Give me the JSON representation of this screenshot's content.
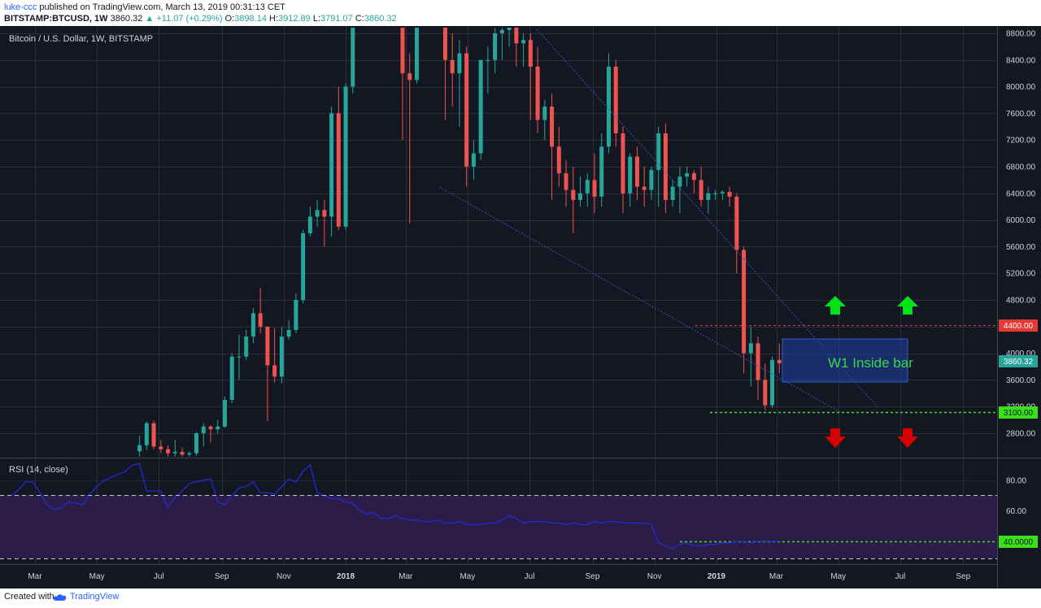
{
  "header": {
    "author": "luke-ccc",
    "published": "published on TradingView.com, March 13, 2019 00:31:13 CET",
    "symbol": "BITSTAMP:BTCUSD, 1W",
    "last": "3860.32",
    "change": "▲ +11.07 (+0.29%)",
    "o_label": "O:",
    "o_value": "3898.14",
    "h_label": "H:",
    "h_value": "3912.89",
    "l_label": "L:",
    "l_value": "3791.07",
    "c_label": "C:",
    "c_value": "3860.32"
  },
  "footer": {
    "created_with": "Created with",
    "brand": "TradingView"
  },
  "chart_data": [
    {
      "type": "candlestick",
      "title": "Bitcoin / U.S. Dollar, 1W, BITSTAMP",
      "y_ticks": [
        2800,
        3200,
        3600,
        4000,
        4400,
        4800,
        5200,
        5600,
        6000,
        6400,
        6800,
        7200,
        7600,
        8000,
        8400,
        8800
      ],
      "ylim": [
        2450,
        8900
      ],
      "x_tick_labels": [
        "Mar",
        "May",
        "Jul",
        "Sep",
        "Nov",
        "2018",
        "Mar",
        "May",
        "Jul",
        "Sep",
        "Nov",
        "2019",
        "Mar",
        "May",
        "Jul",
        "Sep"
      ],
      "x_tick_dates": [
        "2017-03-01",
        "2017-05-01",
        "2017-07-01",
        "2017-09-01",
        "2017-11-01",
        "2018-01-01",
        "2018-03-01",
        "2018-05-01",
        "2018-07-01",
        "2018-09-01",
        "2018-11-01",
        "2019-01-01",
        "2019-03-01",
        "2019-05-01",
        "2019-07-01",
        "2019-09-01"
      ],
      "candle_colors": {
        "up": "#26a69a",
        "down": "#ef5350"
      },
      "candles": [
        {
          "date": "2017-06-12",
          "o": 2530,
          "h": 2760,
          "l": 2450,
          "c": 2620
        },
        {
          "date": "2017-06-19",
          "o": 2620,
          "h": 2980,
          "l": 2550,
          "c": 2950
        },
        {
          "date": "2017-06-26",
          "o": 2950,
          "h": 2990,
          "l": 2560,
          "c": 2600
        },
        {
          "date": "2017-07-03",
          "o": 2600,
          "h": 2700,
          "l": 2500,
          "c": 2560
        },
        {
          "date": "2017-07-10",
          "o": 2560,
          "h": 2620,
          "l": 2450,
          "c": 2500
        },
        {
          "date": "2017-07-17",
          "o": 2500,
          "h": 2700,
          "l": 2450,
          "c": 2520
        },
        {
          "date": "2017-07-24",
          "o": 2520,
          "h": 2580,
          "l": 2450,
          "c": 2480
        },
        {
          "date": "2017-07-31",
          "o": 2480,
          "h": 2530,
          "l": 2450,
          "c": 2500
        },
        {
          "date": "2017-08-07",
          "o": 2500,
          "h": 2820,
          "l": 2460,
          "c": 2800
        },
        {
          "date": "2017-08-14",
          "o": 2800,
          "h": 2950,
          "l": 2600,
          "c": 2900
        },
        {
          "date": "2017-08-21",
          "o": 2900,
          "h": 2920,
          "l": 2660,
          "c": 2860
        },
        {
          "date": "2017-08-28",
          "o": 2860,
          "h": 3000,
          "l": 2800,
          "c": 2900
        },
        {
          "date": "2017-09-04",
          "o": 2900,
          "h": 3350,
          "l": 2880,
          "c": 3300
        },
        {
          "date": "2017-09-11",
          "o": 3300,
          "h": 4000,
          "l": 3250,
          "c": 3950
        },
        {
          "date": "2017-09-18",
          "o": 3950,
          "h": 4280,
          "l": 3600,
          "c": 3950
        },
        {
          "date": "2017-09-25",
          "o": 3950,
          "h": 4350,
          "l": 3900,
          "c": 4250
        },
        {
          "date": "2017-10-02",
          "o": 4250,
          "h": 4680,
          "l": 4150,
          "c": 4600
        },
        {
          "date": "2017-10-09",
          "o": 4600,
          "h": 4980,
          "l": 4300,
          "c": 4400
        },
        {
          "date": "2017-10-16",
          "o": 4400,
          "h": 4400,
          "l": 2980,
          "c": 3820
        },
        {
          "date": "2017-10-23",
          "o": 3820,
          "h": 4380,
          "l": 3560,
          "c": 3650
        },
        {
          "date": "2017-10-30",
          "o": 3650,
          "h": 4400,
          "l": 3550,
          "c": 4250
        },
        {
          "date": "2017-11-06",
          "o": 4250,
          "h": 4500,
          "l": 4200,
          "c": 4350
        },
        {
          "date": "2017-11-13",
          "o": 4350,
          "h": 4900,
          "l": 4300,
          "c": 4800
        },
        {
          "date": "2017-11-20",
          "o": 4800,
          "h": 5850,
          "l": 4750,
          "c": 5800
        },
        {
          "date": "2017-11-27",
          "o": 5800,
          "h": 6200,
          "l": 5750,
          "c": 6050
        },
        {
          "date": "2017-12-04",
          "o": 6050,
          "h": 6300,
          "l": 5900,
          "c": 6150
        },
        {
          "date": "2017-12-11",
          "o": 6150,
          "h": 6300,
          "l": 5600,
          "c": 6050
        },
        {
          "date": "2017-12-18",
          "o": 6050,
          "h": 7700,
          "l": 5750,
          "c": 7600
        },
        {
          "date": "2017-12-25",
          "o": 7600,
          "h": 8000,
          "l": 5850,
          "c": 5900
        },
        {
          "date": "2018-01-01",
          "o": 5900,
          "h": 8050,
          "l": 5850,
          "c": 8000
        },
        {
          "date": "2018-01-08",
          "o": 8000,
          "h": 8900,
          "l": 7900,
          "c": 8900
        },
        {
          "date": "2018-02-26",
          "o": 8900,
          "h": 8900,
          "l": 7200,
          "c": 8200
        },
        {
          "date": "2018-03-05",
          "o": 8200,
          "h": 8500,
          "l": 5950,
          "c": 8100
        },
        {
          "date": "2018-03-12",
          "o": 8100,
          "h": 8900,
          "l": 8050,
          "c": 8900
        },
        {
          "date": "2018-04-09",
          "o": 8900,
          "h": 8900,
          "l": 7500,
          "c": 8400
        },
        {
          "date": "2018-04-16",
          "o": 8400,
          "h": 8800,
          "l": 7700,
          "c": 8200
        },
        {
          "date": "2018-04-23",
          "o": 8200,
          "h": 8700,
          "l": 7400,
          "c": 8500
        },
        {
          "date": "2018-04-30",
          "o": 8500,
          "h": 8600,
          "l": 6500,
          "c": 6800
        },
        {
          "date": "2018-05-07",
          "o": 6800,
          "h": 7200,
          "l": 6600,
          "c": 7000
        },
        {
          "date": "2018-05-14",
          "o": 7000,
          "h": 8400,
          "l": 6900,
          "c": 8400
        },
        {
          "date": "2018-05-21",
          "o": 8400,
          "h": 8600,
          "l": 7900,
          "c": 8400
        },
        {
          "date": "2018-05-28",
          "o": 8400,
          "h": 8900,
          "l": 8200,
          "c": 8800
        },
        {
          "date": "2018-06-04",
          "o": 8800,
          "h": 8900,
          "l": 8400,
          "c": 8850
        },
        {
          "date": "2018-06-11",
          "o": 8850,
          "h": 8900,
          "l": 8600,
          "c": 8900
        },
        {
          "date": "2018-06-18",
          "o": 8900,
          "h": 8900,
          "l": 8300,
          "c": 8650
        },
        {
          "date": "2018-06-25",
          "o": 8650,
          "h": 8800,
          "l": 8300,
          "c": 8700
        },
        {
          "date": "2018-07-02",
          "o": 8700,
          "h": 8800,
          "l": 7500,
          "c": 8300
        },
        {
          "date": "2018-07-09",
          "o": 8300,
          "h": 8600,
          "l": 7300,
          "c": 7500
        },
        {
          "date": "2018-07-16",
          "o": 7500,
          "h": 7800,
          "l": 7200,
          "c": 7700
        },
        {
          "date": "2018-07-23",
          "o": 7700,
          "h": 7900,
          "l": 6300,
          "c": 7100
        },
        {
          "date": "2018-07-30",
          "o": 7100,
          "h": 7400,
          "l": 6500,
          "c": 6700
        },
        {
          "date": "2018-08-06",
          "o": 6700,
          "h": 6900,
          "l": 6200,
          "c": 6450
        },
        {
          "date": "2018-08-13",
          "o": 6450,
          "h": 6800,
          "l": 5800,
          "c": 6300
        },
        {
          "date": "2018-08-20",
          "o": 6300,
          "h": 6650,
          "l": 6200,
          "c": 6400
        },
        {
          "date": "2018-08-27",
          "o": 6400,
          "h": 6700,
          "l": 6200,
          "c": 6600
        },
        {
          "date": "2018-09-03",
          "o": 6600,
          "h": 7000,
          "l": 6100,
          "c": 6350
        },
        {
          "date": "2018-09-10",
          "o": 6350,
          "h": 7300,
          "l": 6200,
          "c": 7100
        },
        {
          "date": "2018-09-17",
          "o": 7100,
          "h": 8500,
          "l": 7000,
          "c": 8300
        },
        {
          "date": "2018-09-24",
          "o": 8300,
          "h": 8400,
          "l": 7100,
          "c": 7300
        },
        {
          "date": "2018-10-01",
          "o": 7300,
          "h": 7400,
          "l": 6100,
          "c": 6400
        },
        {
          "date": "2018-10-08",
          "o": 6400,
          "h": 7000,
          "l": 6200,
          "c": 6950
        },
        {
          "date": "2018-10-15",
          "o": 6950,
          "h": 7100,
          "l": 6300,
          "c": 6500
        },
        {
          "date": "2018-10-22",
          "o": 6500,
          "h": 6800,
          "l": 6200,
          "c": 6450
        },
        {
          "date": "2018-10-29",
          "o": 6450,
          "h": 6800,
          "l": 6300,
          "c": 6750
        },
        {
          "date": "2018-11-05",
          "o": 6750,
          "h": 7400,
          "l": 6200,
          "c": 7300
        },
        {
          "date": "2018-11-12",
          "o": 7300,
          "h": 7450,
          "l": 6100,
          "c": 6300
        },
        {
          "date": "2018-11-19",
          "o": 6300,
          "h": 6600,
          "l": 6200,
          "c": 6500
        },
        {
          "date": "2018-11-26",
          "o": 6500,
          "h": 6800,
          "l": 6100,
          "c": 6650
        },
        {
          "date": "2018-12-03",
          "o": 6650,
          "h": 6800,
          "l": 6500,
          "c": 6700
        },
        {
          "date": "2018-12-10",
          "o": 6700,
          "h": 6750,
          "l": 6400,
          "c": 6600
        },
        {
          "date": "2018-12-17",
          "o": 6600,
          "h": 6800,
          "l": 6200,
          "c": 6300
        },
        {
          "date": "2018-12-24",
          "o": 6300,
          "h": 6500,
          "l": 6100,
          "c": 6400
        },
        {
          "date": "2018-12-31",
          "o": 6400,
          "h": 6450,
          "l": 6300,
          "c": 6400
        },
        {
          "date": "2019-01-07",
          "o": 6400,
          "h": 6450,
          "l": 6300,
          "c": 6420
        },
        {
          "date": "2019-01-14",
          "o": 6420,
          "h": 6500,
          "l": 6200,
          "c": 6350
        },
        {
          "date": "2019-01-21",
          "o": 6350,
          "h": 6400,
          "l": 5200,
          "c": 5550
        },
        {
          "date": "2019-01-28",
          "o": 5550,
          "h": 5600,
          "l": 3700,
          "c": 4000
        },
        {
          "date": "2019-02-04",
          "o": 4000,
          "h": 4400,
          "l": 3500,
          "c": 4150
        },
        {
          "date": "2019-02-11",
          "o": 4150,
          "h": 4250,
          "l": 3300,
          "c": 3600
        },
        {
          "date": "2019-02-18",
          "o": 3600,
          "h": 3850,
          "l": 3150,
          "c": 3220
        },
        {
          "date": "2019-02-25",
          "o": 3220,
          "h": 3950,
          "l": 3180,
          "c": 3900
        },
        {
          "date": "2019-03-04",
          "o": 3900,
          "h": 4150,
          "l": 3700,
          "c": 3850
        }
      ]
    },
    {
      "type": "line",
      "title": "RSI (14, close)",
      "y_ticks": [
        40,
        60,
        80
      ],
      "ylim": [
        29,
        92
      ],
      "line_color": "#2329d9",
      "band": [
        30,
        70
      ],
      "band_color": "#4a2a78",
      "series": [
        {
          "x": [
            "2017-02-06",
            "2017-02-13",
            "2017-02-20",
            "2017-02-27",
            "2017-03-06",
            "2017-03-13",
            "2017-03-20",
            "2017-03-27",
            "2017-04-03",
            "2017-04-10",
            "2017-04-17",
            "2017-04-24",
            "2017-05-01",
            "2017-05-08",
            "2017-05-15",
            "2017-05-22",
            "2017-05-29",
            "2017-06-05",
            "2017-06-12",
            "2017-06-19",
            "2017-06-26",
            "2017-07-03",
            "2017-07-10",
            "2017-07-17",
            "2017-07-24",
            "2017-07-31",
            "2017-08-07",
            "2017-08-14",
            "2017-08-21",
            "2017-08-28",
            "2017-09-04",
            "2017-09-11",
            "2017-09-18",
            "2017-09-25",
            "2017-10-02",
            "2017-10-09",
            "2017-10-16",
            "2017-10-23",
            "2017-10-30",
            "2017-11-06",
            "2017-11-13",
            "2017-11-20",
            "2017-11-27",
            "2017-12-04",
            "2017-12-11",
            "2017-12-18",
            "2017-12-25",
            "2018-01-01",
            "2018-01-08",
            "2018-01-15",
            "2018-01-22",
            "2018-01-29",
            "2018-02-05",
            "2018-02-12",
            "2018-02-19",
            "2018-02-26",
            "2018-03-05",
            "2018-03-12",
            "2018-03-19",
            "2018-03-26",
            "2018-04-02",
            "2018-04-09",
            "2018-04-16",
            "2018-04-23",
            "2018-04-30",
            "2018-05-07",
            "2018-05-14",
            "2018-05-21",
            "2018-05-28",
            "2018-06-04",
            "2018-06-11",
            "2018-06-18",
            "2018-06-25",
            "2018-07-02",
            "2018-07-09",
            "2018-07-16",
            "2018-07-23",
            "2018-07-30",
            "2018-08-06",
            "2018-08-13",
            "2018-08-20",
            "2018-08-27",
            "2018-09-03",
            "2018-09-10",
            "2018-09-17",
            "2018-09-24",
            "2018-10-01",
            "2018-10-08",
            "2018-10-15",
            "2018-10-22",
            "2018-10-29",
            "2018-11-05",
            "2018-11-12",
            "2018-11-19",
            "2018-11-26",
            "2018-12-03",
            "2018-12-10",
            "2018-12-17",
            "2018-12-24",
            "2018-12-31",
            "2019-01-07",
            "2019-01-14",
            "2019-01-21",
            "2019-01-28",
            "2019-02-04",
            "2019-02-11",
            "2019-02-18",
            "2019-02-25",
            "2019-03-04"
          ],
          "values": [
            70,
            74,
            79,
            79,
            72,
            64,
            61,
            62,
            66,
            65,
            64,
            71,
            76,
            80,
            82,
            84,
            86,
            90,
            91,
            73,
            73,
            73,
            62,
            69,
            73,
            78,
            79,
            80,
            81,
            66,
            64,
            70,
            75,
            76,
            79,
            72,
            72,
            71,
            76,
            81,
            79,
            86,
            90,
            72,
            70,
            68,
            68,
            66,
            65,
            60,
            58,
            59,
            55,
            55,
            57,
            55,
            54,
            54,
            53,
            53,
            54,
            52,
            52,
            53,
            51,
            51,
            51,
            52,
            52,
            54,
            57,
            55,
            52,
            53,
            53,
            53,
            52,
            52,
            51,
            52,
            51,
            51,
            53,
            52,
            53,
            53,
            52,
            52,
            52,
            52,
            51,
            39,
            37,
            35,
            38,
            39,
            37,
            37,
            38,
            38,
            39,
            39,
            40,
            40,
            39,
            40,
            40,
            40,
            40
          ]
        }
      ]
    }
  ],
  "price_labels": {
    "last": "3860.32",
    "resistance": "4400.00",
    "support": "3100.00",
    "rsi_level": "40.0000"
  },
  "annotation": {
    "inside_bar_text": "W1 Inside bar"
  }
}
